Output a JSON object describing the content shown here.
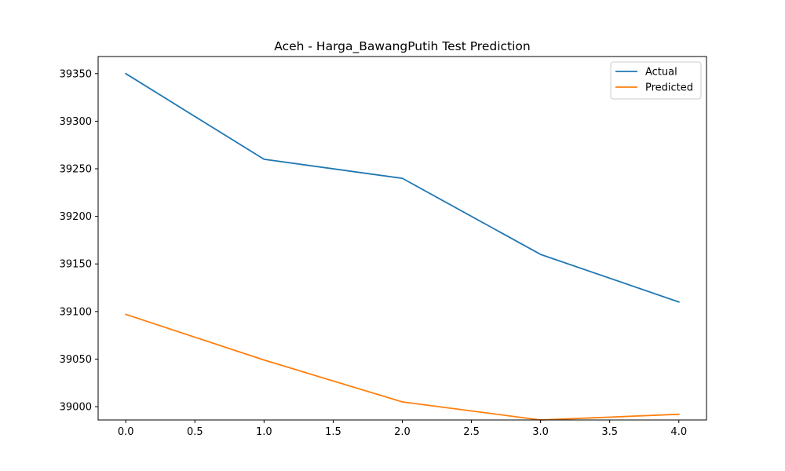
{
  "chart_data": {
    "type": "line",
    "title": "Aceh - Harga_BawangPutih Test Prediction",
    "xlabel": "",
    "ylabel": "",
    "x": [
      0,
      1,
      2,
      3,
      4
    ],
    "xlim": [
      -0.2,
      4.2
    ],
    "ylim": [
      38986,
      39368
    ],
    "x_ticks": [
      "0.0",
      "0.5",
      "1.0",
      "1.5",
      "2.0",
      "2.5",
      "3.0",
      "3.5",
      "4.0"
    ],
    "y_ticks": [
      "39000",
      "39050",
      "39100",
      "39150",
      "39200",
      "39250",
      "39300",
      "39350"
    ],
    "grid": false,
    "legend_position": "top-right",
    "series": [
      {
        "name": "Actual",
        "color": "#1f77b4",
        "values": [
          39350,
          39260,
          39240,
          39160,
          39110
        ]
      },
      {
        "name": "Predicted",
        "color": "#ff7f0e",
        "values": [
          39097,
          39049,
          39005,
          38986,
          38992
        ]
      }
    ]
  }
}
